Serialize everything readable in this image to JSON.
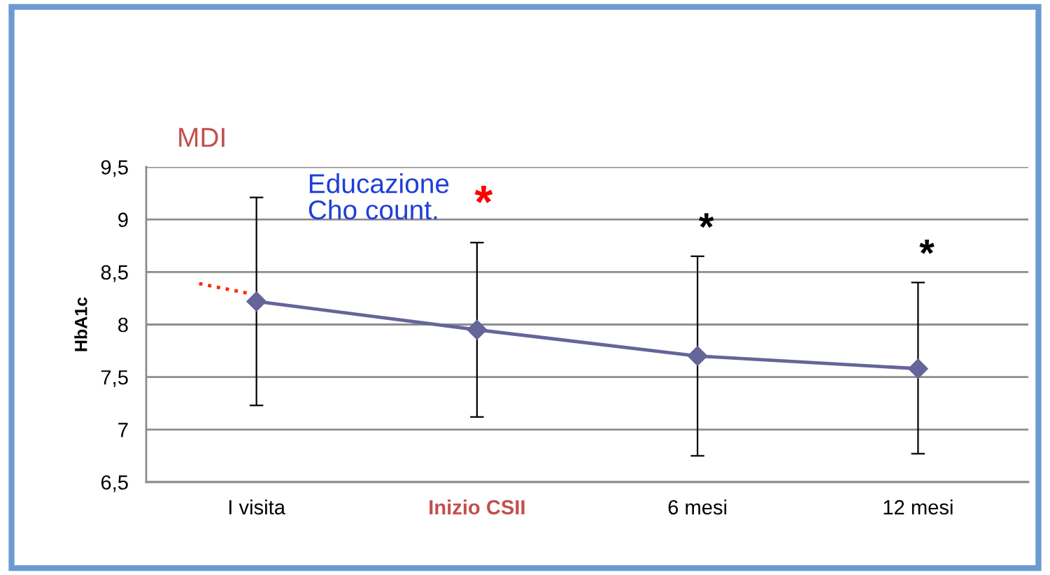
{
  "chart_data": {
    "type": "line",
    "ylabel": "HbA1c",
    "categories": [
      "I visita",
      "Inizio CSII",
      "6 mesi",
      "12 mesi"
    ],
    "series": [
      {
        "color": "#65659a",
        "values": [
          8.22,
          7.95,
          7.7,
          7.58
        ],
        "errors": [
          [
            7.23,
            9.21
          ],
          [
            7.12,
            8.78
          ],
          [
            6.75,
            8.65
          ],
          [
            6.77,
            8.4
          ]
        ]
      }
    ],
    "ylim": [
      6.5,
      9.5
    ],
    "yticks": [
      {
        "value": 6.5,
        "label": "6,5"
      },
      7,
      {
        "value": 7.5,
        "label": "7,5"
      },
      8,
      {
        "value": 8.5,
        "label": "8,5"
      },
      9,
      {
        "value": 9.5,
        "label": "9,5"
      }
    ],
    "grid": "y",
    "marker": "diamond",
    "line_style": "solid",
    "legend": false,
    "annotations": [
      "MDI",
      "Educazione\nCho count.",
      "*",
      "*",
      "*"
    ]
  }
}
